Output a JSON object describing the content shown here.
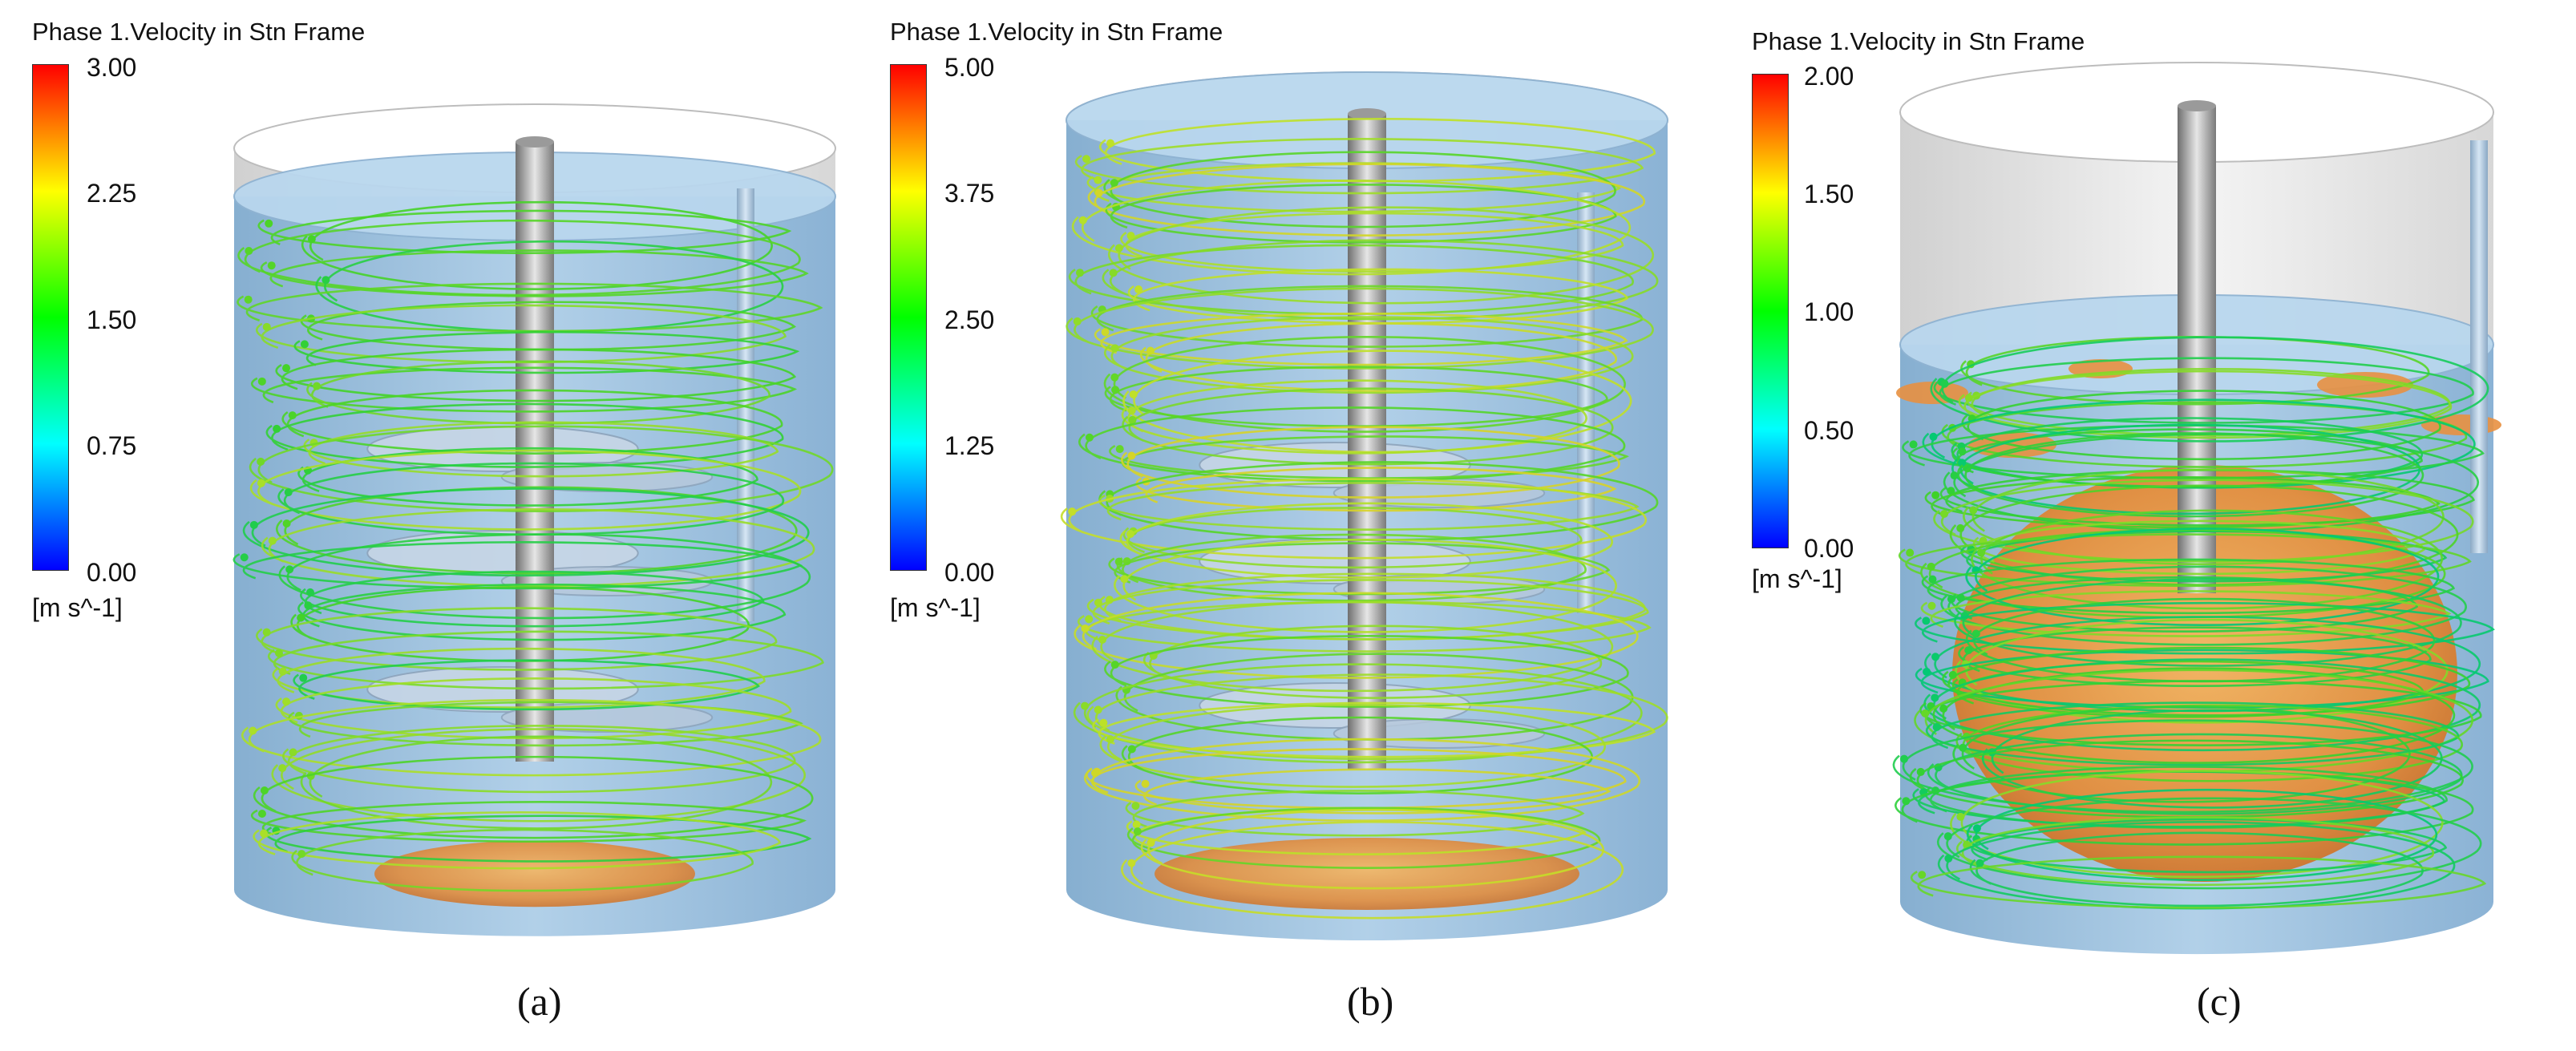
{
  "panels": [
    {
      "caption": "(a)",
      "legend_title": "Phase 1.Velocity in Stn Frame",
      "ticks": [
        "3.00",
        "2.25",
        "1.50",
        "0.75",
        "0.00"
      ],
      "unit": "[m s^-1]"
    },
    {
      "caption": "(b)",
      "legend_title": "Phase 1.Velocity in Stn Frame",
      "ticks": [
        "5.00",
        "3.75",
        "2.50",
        "1.25",
        "0.00"
      ],
      "unit": "[m s^-1]"
    },
    {
      "caption": "(c)",
      "legend_title": "Phase 1.Velocity in Stn Frame",
      "ticks": [
        "2.00",
        "1.50",
        "1.00",
        "0.50",
        "0.00"
      ],
      "unit": "[m s^-1]"
    }
  ],
  "colors": {
    "background": "#ffffff",
    "liquid": "#8fb8d8",
    "iso_surface": "#e88a3c",
    "colormap": [
      "#ff0000",
      "#ffff00",
      "#00ff00",
      "#00ffff",
      "#0000ff"
    ]
  }
}
